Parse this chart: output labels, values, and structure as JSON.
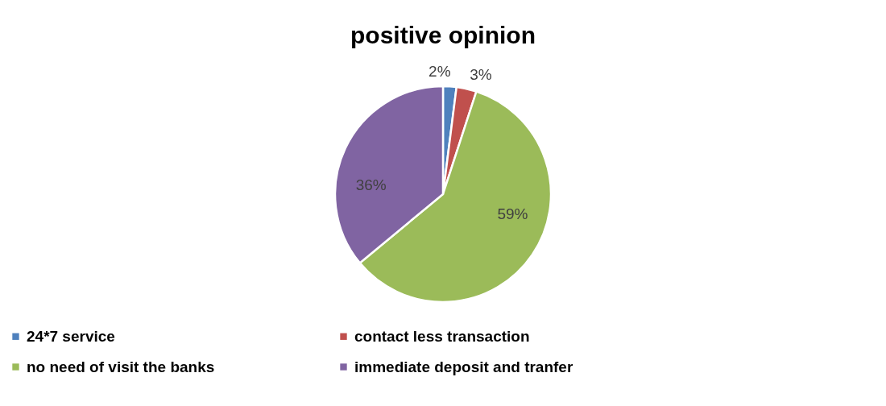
{
  "chart_data": {
    "type": "pie",
    "title": "positive opinion",
    "categories": [
      "24*7 service",
      "contact  less transaction",
      "no need of visit the banks",
      "immediate deposit and tranfer"
    ],
    "values": [
      2,
      3,
      59,
      36
    ],
    "colors": [
      "#4f81bd",
      "#c0504d",
      "#9bbb59",
      "#8064a2"
    ],
    "value_labels": [
      "2%",
      "3%",
      "59%",
      "36%"
    ],
    "legend": "bottom"
  }
}
